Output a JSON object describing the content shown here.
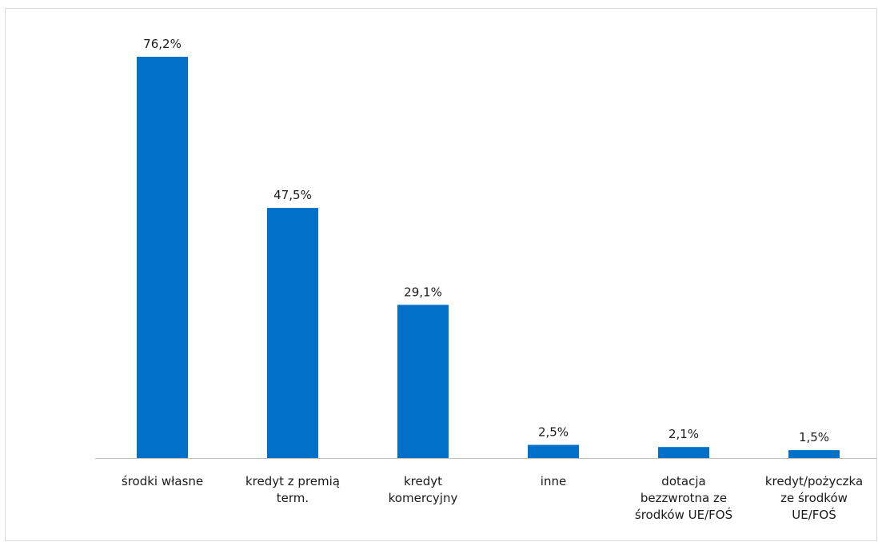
{
  "chart_data": {
    "type": "bar",
    "categories": [
      [
        "środki własne"
      ],
      [
        "kredyt z premią",
        "term."
      ],
      [
        "kredyt",
        "komercyjny"
      ],
      [
        "inne"
      ],
      [
        "dotacja",
        "bezzwrotna ze",
        "środków UE/FOŚ"
      ],
      [
        "kredyt/pożyczka",
        "ze środków",
        "UE/FOŚ"
      ]
    ],
    "values": [
      76.2,
      47.5,
      29.1,
      2.5,
      2.1,
      1.5
    ],
    "value_labels": [
      "76,2%",
      "47,5%",
      "29,1%",
      "2,5%",
      "2,1%",
      "1,5%"
    ],
    "ylim": [
      0,
      76.2
    ],
    "bar_color": "#0070c8",
    "axis_color": "#bfbfbf",
    "grid": false,
    "legend": "none"
  }
}
